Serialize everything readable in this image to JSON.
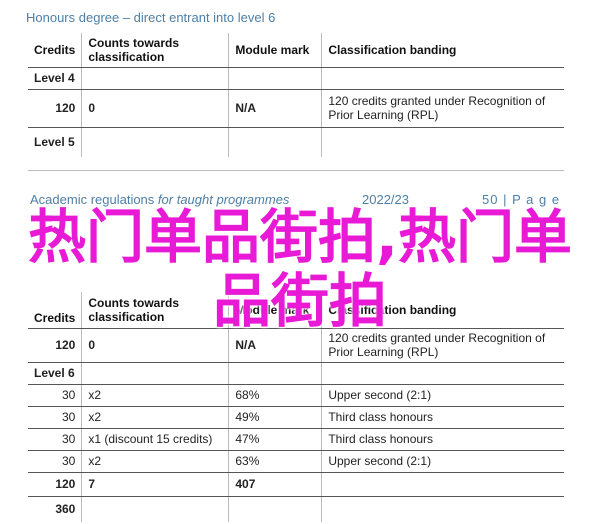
{
  "section_heading": "Honours degree – direct entrant into level 6",
  "table_headers": {
    "credits": "Credits",
    "counts": "Counts towards classification",
    "module_mark": "Module mark",
    "banding": "Classification banding"
  },
  "table1": {
    "level4_label": "Level 4",
    "level4_row": {
      "credits": "120",
      "counts": "0",
      "mark": "N/A",
      "banding": "120 credits granted under Recognition of Prior Learning (RPL)"
    },
    "level5_label": "Level 5"
  },
  "footer": {
    "title": "Academic regulations",
    "title_italic": "for taught programmes",
    "year": "2022/23",
    "page_number": "50",
    "page_label": "| P a g e"
  },
  "overlay_text": "热门单品街拍,热门单品街拍",
  "table2": {
    "first_row": {
      "credits": "120",
      "counts": "0",
      "mark": "N/A",
      "banding": "120 credits granted under Recognition of Prior Learning (RPL)"
    },
    "level6_label": "Level 6",
    "rows": [
      {
        "credits": "30",
        "counts": "x2",
        "mark": "68%",
        "banding": "Upper second (2:1)"
      },
      {
        "credits": "30",
        "counts": "x2",
        "mark": "49%",
        "banding": "Third class honours"
      },
      {
        "credits": "30",
        "counts": "x1 (discount 15 credits)",
        "mark": "47%",
        "banding": "Third class honours"
      },
      {
        "credits": "30",
        "counts": "x2",
        "mark": "63%",
        "banding": "Upper second (2:1)"
      }
    ],
    "total_row": {
      "credits": "120",
      "counts": "7",
      "mark": "407"
    },
    "grand_total": "360"
  }
}
